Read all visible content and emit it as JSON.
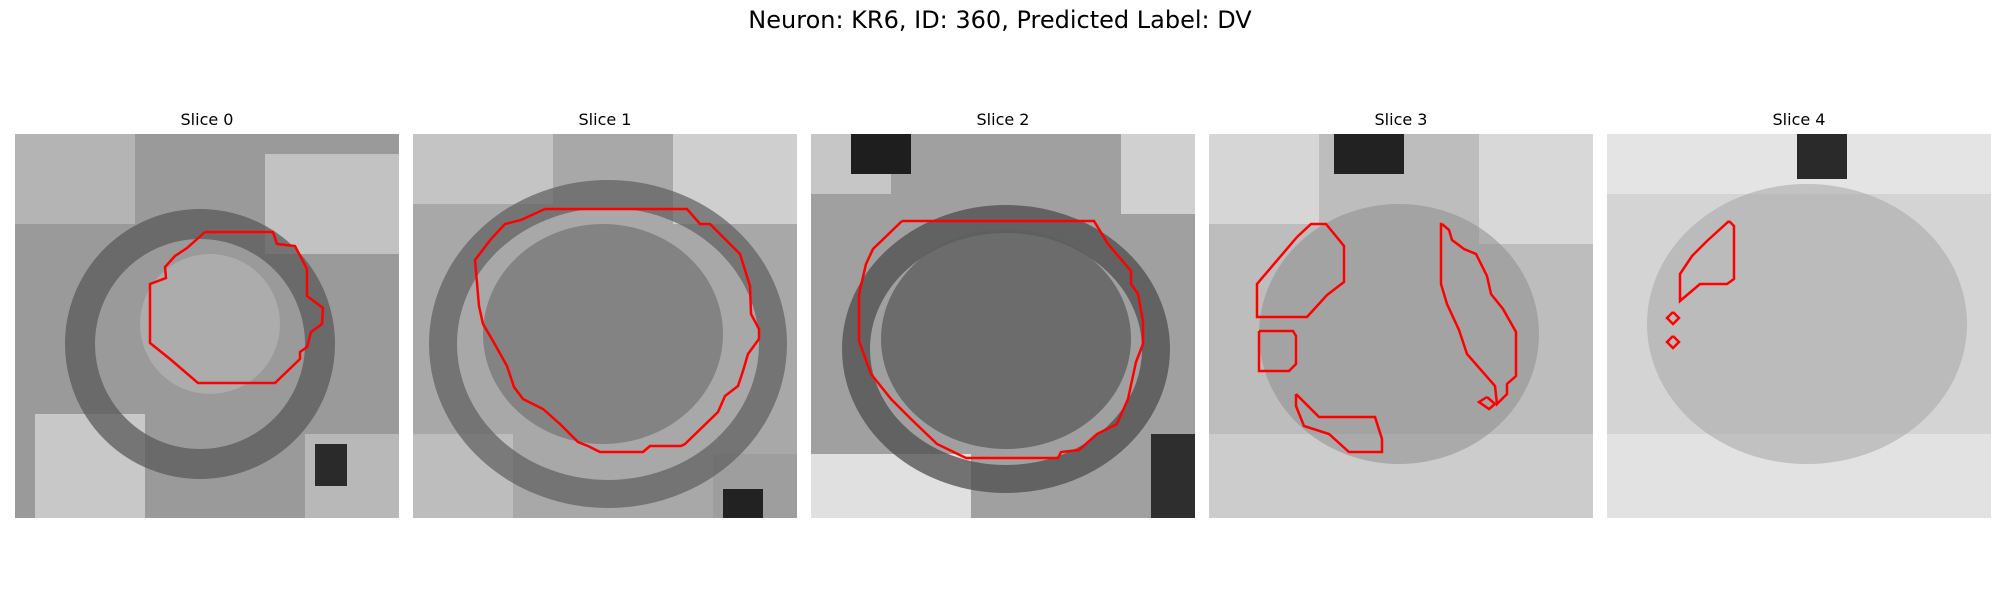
{
  "figure": {
    "title": "Neuron: KR6, ID: 360, Predicted Label: DV"
  },
  "panels": [
    {
      "title": "Slice 0"
    },
    {
      "title": "Slice 1"
    },
    {
      "title": "Slice 2"
    },
    {
      "title": "Slice 3"
    },
    {
      "title": "Slice 4"
    }
  ],
  "colors": {
    "contour": "#ff0000",
    "background": "#ffffff"
  }
}
